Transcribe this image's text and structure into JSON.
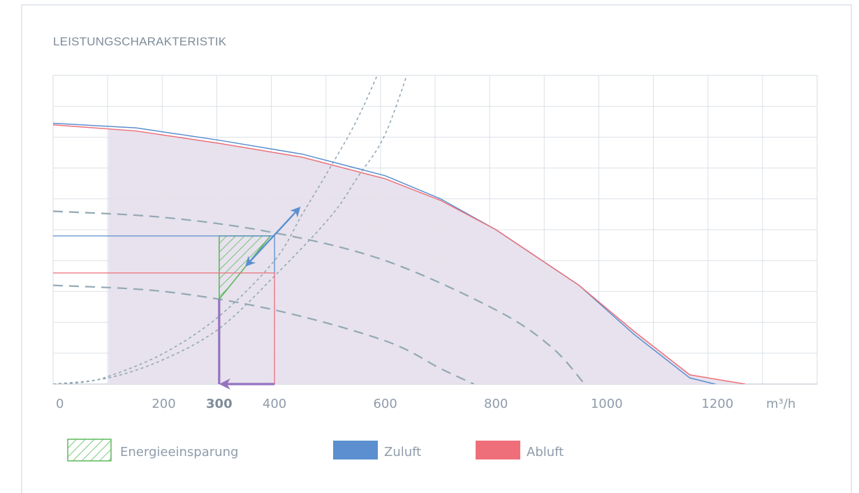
{
  "chart_data": {
    "type": "line",
    "title": "LEISTUNGSCHARAKTERISTIK",
    "xlabel": "",
    "ylabel": "",
    "xunit": "m³/h",
    "xlim": [
      0,
      1380
    ],
    "ylim": [
      0,
      10
    ],
    "grid": true,
    "x_ticks": [
      0,
      200,
      300,
      400,
      600,
      800,
      1000,
      1200
    ],
    "x_tick_labels": [
      "0",
      "200",
      "300",
      "400",
      "600",
      "800",
      "1000",
      "1200"
    ],
    "highlight_tick": 300,
    "legend": [
      {
        "key": "energy",
        "label": "Energieeinsparung",
        "color": "#5cb85c"
      },
      {
        "key": "zuluft",
        "label": "Zuluft",
        "color": "#5b8fcf"
      },
      {
        "key": "abluft",
        "label": "Abluft",
        "color": "#ee6f7a"
      }
    ],
    "legend_position": "bottom",
    "series": [
      {
        "name": "Zuluft",
        "color": "#5b8fcf",
        "x": [
          0,
          150,
          300,
          450,
          600,
          700,
          800,
          850,
          950,
          1050,
          1150,
          1240
        ],
        "y": [
          8.45,
          8.3,
          7.9,
          7.45,
          6.75,
          6.0,
          5.0,
          4.4,
          3.2,
          1.6,
          0.2,
          -0.2
        ]
      },
      {
        "name": "Abluft",
        "color": "#ee6f7a",
        "x": [
          0,
          150,
          300,
          450,
          600,
          700,
          800,
          850,
          950,
          1050,
          1150,
          1250
        ],
        "y": [
          8.4,
          8.2,
          7.8,
          7.35,
          6.65,
          5.95,
          5.0,
          4.4,
          3.2,
          1.7,
          0.3,
          0.0
        ]
      }
    ],
    "operating_range": {
      "x_min": 100,
      "color": "#e6e0ec"
    },
    "system_curves": [
      {
        "x": [
          0,
          50,
          100,
          200,
          300,
          400,
          450,
          500,
          550,
          600
        ],
        "y": [
          0,
          0.05,
          0.25,
          1.0,
          2.2,
          4.0,
          5.5,
          7.0,
          8.6,
          10.6
        ]
      },
      {
        "x": [
          0,
          100,
          200,
          300,
          400,
          500,
          550,
          600,
          650
        ],
        "y": [
          0,
          0.2,
          0.8,
          1.8,
          3.5,
          5.4,
          6.7,
          8.1,
          10.6
        ]
      }
    ],
    "fan_curves": [
      {
        "x": [
          0,
          200,
          400,
          600,
          800,
          900,
          960
        ],
        "y": [
          5.6,
          5.4,
          4.9,
          4.0,
          2.4,
          1.2,
          0.0
        ]
      },
      {
        "x": [
          0,
          200,
          400,
          600,
          700,
          760
        ],
        "y": [
          3.2,
          3.0,
          2.4,
          1.4,
          0.5,
          0.0
        ]
      }
    ],
    "operating_points": {
      "zuluft_level": 4.8,
      "abluft_level": 3.6,
      "reduced_flow": 300,
      "original_flow": 400,
      "reduced_level": 2.75,
      "arrow_from": [
        352,
        3.9
      ],
      "arrow_to": [
        442,
        5.65
      ]
    }
  }
}
